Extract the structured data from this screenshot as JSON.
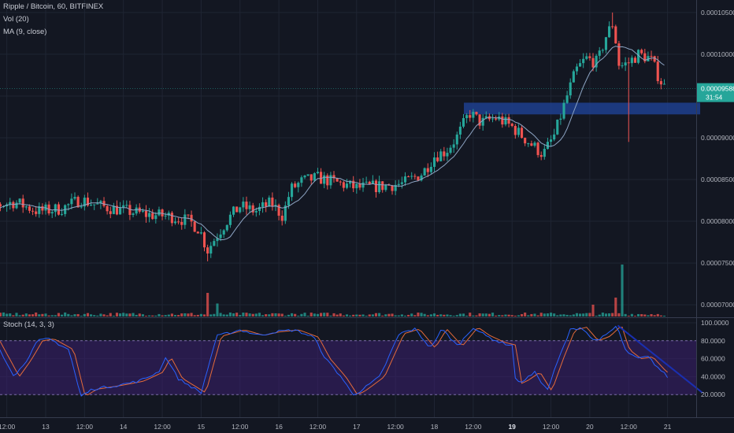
{
  "legend": {
    "symbol_line": "Ripple / Bitcoin, 60, BITFINEX",
    "volume_label": "Vol (20)",
    "ma_label": "MA (9, close)",
    "stoch_label": "Stoch (14, 3, 3)"
  },
  "colors": {
    "background": "#131722",
    "grid": "#1f2533",
    "up": "#26a69a",
    "down": "#ef5350",
    "ma": "#8ea5c4",
    "zone": "#1e3f8e",
    "stoch_k": "#2962ff",
    "stoch_d": "#e56b3a",
    "stoch_band": "#3b1f6e",
    "trendline": "#1a2fb0",
    "price_tag": "#26a69a"
  },
  "price_axis": {
    "ticks": [
      "0.00010500",
      "0.00010000",
      "0.00009500",
      "0.00009000",
      "0.00008500",
      "0.00008000",
      "0.00007500",
      "0.00007000"
    ],
    "current_price": "0.00009588",
    "countdown": "31:54"
  },
  "stoch_axis": {
    "ticks": [
      "100.0000",
      "80.0000",
      "60.0000",
      "40.0000",
      "20.0000"
    ]
  },
  "time_axis": {
    "labels": [
      {
        "text": "12:00",
        "bold": false
      },
      {
        "text": "13",
        "bold": false
      },
      {
        "text": "12:00",
        "bold": false
      },
      {
        "text": "14",
        "bold": false
      },
      {
        "text": "12:00",
        "bold": false
      },
      {
        "text": "15",
        "bold": false
      },
      {
        "text": "12:00",
        "bold": false
      },
      {
        "text": "16",
        "bold": false
      },
      {
        "text": "12:00",
        "bold": false
      },
      {
        "text": "17",
        "bold": false
      },
      {
        "text": "12:00",
        "bold": false
      },
      {
        "text": "18",
        "bold": false
      },
      {
        "text": "12:00",
        "bold": false
      },
      {
        "text": "19",
        "bold": true
      },
      {
        "text": "12:00",
        "bold": false
      },
      {
        "text": "20",
        "bold": false
      },
      {
        "text": "12:00",
        "bold": false
      },
      {
        "text": "21",
        "bold": false
      }
    ]
  },
  "chart_data": {
    "type": "candlestick",
    "timeframe": "60",
    "y_range": [
      6.85e-05,
      0.0001065
    ],
    "stoch_range": [
      0,
      100
    ],
    "stoch_band": [
      20,
      80
    ],
    "resistance_zone": {
      "low": 9.28e-05,
      "high": 9.42e-05,
      "from_day": 18.38,
      "to_day": 21.42
    },
    "price_points": [
      [
        12.0,
        8e-05
      ],
      [
        12.3,
        8.18e-05
      ],
      [
        12.6,
        8.23e-05
      ],
      [
        12.9,
        8.12e-05
      ],
      [
        13.2,
        8.15e-05
      ],
      [
        13.45,
        8.26e-05
      ],
      [
        13.7,
        8.18e-05
      ],
      [
        14.0,
        8.13e-05
      ],
      [
        14.3,
        8.08e-05
      ],
      [
        14.6,
        8.06e-05
      ],
      [
        14.85,
        8e-05
      ],
      [
        14.98,
        7.9e-05
      ],
      [
        15.08,
        7.65e-05
      ],
      [
        15.2,
        7.83e-05
      ],
      [
        15.35,
        8.03e-05
      ],
      [
        15.5,
        8.18e-05
      ],
      [
        15.7,
        8.12e-05
      ],
      [
        15.9,
        8.22e-05
      ],
      [
        16.05,
        8.06e-05
      ],
      [
        16.15,
        8.38e-05
      ],
      [
        16.3,
        8.48e-05
      ],
      [
        16.5,
        8.52e-05
      ],
      [
        16.75,
        8.46e-05
      ],
      [
        17.0,
        8.4e-05
      ],
      [
        17.3,
        8.42e-05
      ],
      [
        17.6,
        8.45e-05
      ],
      [
        17.85,
        8.58e-05
      ],
      [
        18.0,
        8.78e-05
      ],
      [
        18.15,
        8.84e-05
      ],
      [
        18.3,
        9.02e-05
      ],
      [
        18.45,
        9.3e-05
      ],
      [
        18.6,
        9.18e-05
      ],
      [
        18.8,
        9.24e-05
      ],
      [
        19.0,
        9.13e-05
      ],
      [
        19.2,
        8.96e-05
      ],
      [
        19.4,
        8.8e-05
      ],
      [
        19.55,
        9.04e-05
      ],
      [
        19.7,
        9.48e-05
      ],
      [
        19.82,
        9.8e-05
      ],
      [
        19.95,
        9.95e-05
      ],
      [
        20.1,
        9.9e-05
      ],
      [
        20.2,
        0.000102
      ],
      [
        20.3,
        0.0001038
      ],
      [
        20.38,
        9.85e-05
      ],
      [
        20.5,
        9.9e-05
      ],
      [
        20.62,
        0.0001
      ],
      [
        20.78,
        9.95e-05
      ],
      [
        20.9,
        9.7e-05
      ],
      [
        20.98,
        9.58e-05
      ]
    ],
    "spikes": [
      {
        "day": 15.08,
        "low": 7.52e-05
      },
      {
        "day": 20.28,
        "high": 0.000105
      },
      {
        "day": 20.48,
        "low": 8.95e-05
      }
    ],
    "volume": {
      "base": 0.1,
      "spikes": [
        {
          "day": 15.08,
          "value": 1.0
        },
        {
          "day": 15.2,
          "value": 0.55
        },
        {
          "day": 20.42,
          "value": 2.2
        },
        {
          "day": 20.35,
          "value": 0.8
        },
        {
          "day": 20.05,
          "value": 0.5
        }
      ]
    },
    "stoch_k_points": [
      [
        12.0,
        60
      ],
      [
        12.15,
        85
      ],
      [
        12.35,
        80
      ],
      [
        12.6,
        40
      ],
      [
        12.75,
        58
      ],
      [
        12.9,
        80
      ],
      [
        13.05,
        82
      ],
      [
        13.3,
        70
      ],
      [
        13.45,
        18
      ],
      [
        13.6,
        26
      ],
      [
        13.9,
        30
      ],
      [
        14.2,
        35
      ],
      [
        14.45,
        45
      ],
      [
        14.55,
        62
      ],
      [
        14.7,
        38
      ],
      [
        15.0,
        22
      ],
      [
        15.2,
        85
      ],
      [
        15.5,
        92
      ],
      [
        15.75,
        86
      ],
      [
        15.95,
        90
      ],
      [
        16.2,
        92
      ],
      [
        16.45,
        84
      ],
      [
        16.6,
        60
      ],
      [
        16.8,
        40
      ],
      [
        16.95,
        20
      ],
      [
        17.05,
        24
      ],
      [
        17.3,
        40
      ],
      [
        17.55,
        88
      ],
      [
        17.75,
        93
      ],
      [
        17.95,
        72
      ],
      [
        18.1,
        93
      ],
      [
        18.3,
        74
      ],
      [
        18.5,
        95
      ],
      [
        18.65,
        86
      ],
      [
        18.85,
        78
      ],
      [
        19.0,
        75
      ],
      [
        19.05,
        32
      ],
      [
        19.15,
        36
      ],
      [
        19.3,
        45
      ],
      [
        19.45,
        24
      ],
      [
        19.6,
        60
      ],
      [
        19.75,
        92
      ],
      [
        19.9,
        95
      ],
      [
        20.05,
        80
      ],
      [
        20.2,
        85
      ],
      [
        20.35,
        97
      ],
      [
        20.45,
        70
      ],
      [
        20.6,
        60
      ],
      [
        20.75,
        62
      ],
      [
        20.9,
        48
      ],
      [
        21.0,
        40
      ]
    ],
    "stoch_d_lag": 0.06,
    "trendline": {
      "from": [
        20.36,
        97
      ],
      "to": [
        21.45,
        22
      ]
    }
  }
}
